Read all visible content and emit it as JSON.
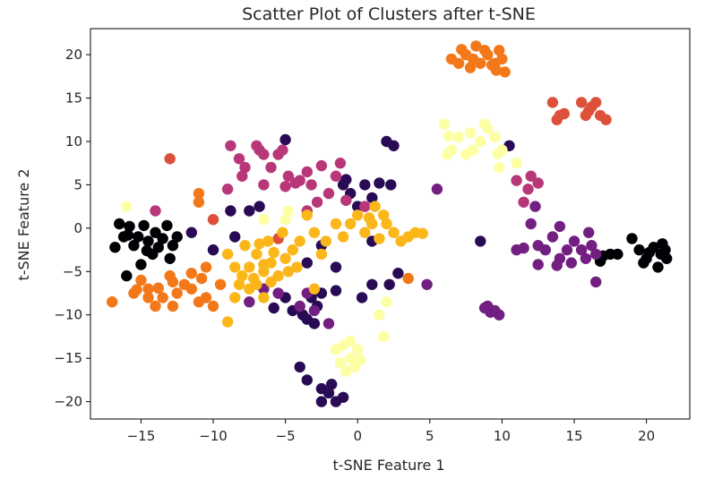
{
  "chart_data": {
    "type": "scatter",
    "title": "Scatter Plot of Clusters after t-SNE",
    "xlabel": "t-SNE Feature 1",
    "ylabel": "t-SNE Feature 2",
    "xlim": [
      -18.5,
      23
    ],
    "ylim": [
      -22,
      23
    ],
    "xticks": [
      -15,
      -10,
      -5,
      0,
      5,
      10,
      15,
      20
    ],
    "yticks": [
      20,
      15,
      10,
      5,
      0,
      -5,
      -10,
      -15,
      -20
    ],
    "xtick_labels": [
      "−15",
      "−10",
      "−5",
      "0",
      "5",
      "10",
      "15",
      "20"
    ],
    "ytick_labels": [
      "20",
      "15",
      "10",
      "5",
      "0",
      "−5",
      "−10",
      "−15",
      "−20"
    ],
    "grid": false,
    "legend": "none",
    "colormap": "inferno",
    "series": [
      {
        "color": "#000004",
        "points": [
          [
            -16.5,
            0.5
          ],
          [
            -16.2,
            -1.0
          ],
          [
            -15.8,
            0.2
          ],
          [
            -15.5,
            -2.0
          ],
          [
            -15.2,
            -1.0
          ],
          [
            -14.8,
            0.3
          ],
          [
            -14.5,
            -1.5
          ],
          [
            -14.2,
            -3.0
          ],
          [
            -14.0,
            -0.5
          ],
          [
            -13.8,
            -2.2
          ],
          [
            -13.5,
            -1.2
          ],
          [
            -13.2,
            0.3
          ],
          [
            -13.0,
            -3.5
          ],
          [
            -12.8,
            -2.0
          ],
          [
            -16.8,
            -2.2
          ],
          [
            -16.0,
            -5.5
          ],
          [
            -15.0,
            -4.2
          ],
          [
            -12.5,
            -1.0
          ],
          [
            -14.6,
            -2.6
          ],
          [
            -15.9,
            -0.8
          ],
          [
            19.0,
            -1.2
          ],
          [
            19.5,
            -2.5
          ],
          [
            20.0,
            -3.5
          ],
          [
            20.5,
            -2.2
          ],
          [
            21.0,
            -3.0
          ],
          [
            20.8,
            -4.5
          ],
          [
            21.3,
            -2.5
          ],
          [
            19.8,
            -4.0
          ],
          [
            20.2,
            -2.8
          ],
          [
            21.1,
            -1.8
          ],
          [
            17.0,
            -3.2
          ],
          [
            17.5,
            -3.0
          ],
          [
            16.8,
            -3.8
          ],
          [
            18.0,
            -3.0
          ],
          [
            21.4,
            -3.5
          ]
        ]
      },
      {
        "color": "#290b55",
        "points": [
          [
            -10.0,
            -2.5
          ],
          [
            -11.5,
            -0.5
          ],
          [
            -8.5,
            -1.0
          ],
          [
            -8.8,
            2.0
          ],
          [
            -7.5,
            2.0
          ],
          [
            -6.8,
            2.5
          ],
          [
            -5.0,
            10.2
          ],
          [
            -3.5,
            -4.0
          ],
          [
            -2.5,
            -2.0
          ],
          [
            -1.0,
            5.0
          ],
          [
            -0.5,
            4.0
          ],
          [
            0.0,
            2.5
          ],
          [
            0.5,
            5.0
          ],
          [
            1.0,
            3.5
          ],
          [
            1.5,
            5.2
          ],
          [
            2.0,
            10.0
          ],
          [
            2.5,
            9.5
          ],
          [
            2.2,
            -6.5
          ],
          [
            2.8,
            -5.2
          ],
          [
            1.0,
            -6.5
          ],
          [
            0.3,
            -8.0
          ],
          [
            -1.5,
            -7.2
          ],
          [
            -2.5,
            -7.5
          ],
          [
            -3.2,
            -8.0
          ],
          [
            -4.5,
            -9.5
          ],
          [
            -3.8,
            -10.0
          ],
          [
            -3.0,
            -11.0
          ],
          [
            -3.5,
            -10.5
          ],
          [
            -2.8,
            -9.0
          ],
          [
            -5.0,
            -8.0
          ],
          [
            -4.0,
            -16.0
          ],
          [
            -3.5,
            -17.5
          ],
          [
            -2.5,
            -18.5
          ],
          [
            -2.0,
            -19.0
          ],
          [
            -1.5,
            -20.0
          ],
          [
            -1.0,
            -19.5
          ],
          [
            -2.5,
            -20.0
          ],
          [
            -1.8,
            -18.0
          ],
          [
            10.5,
            9.5
          ],
          [
            8.5,
            -1.5
          ],
          [
            1.0,
            -1.5
          ],
          [
            2.3,
            5.0
          ],
          [
            -1.5,
            -4.5
          ],
          [
            -0.8,
            5.6
          ],
          [
            -5.8,
            -9.2
          ]
        ]
      },
      {
        "color": "#721f81",
        "points": [
          [
            -7.5,
            -8.5
          ],
          [
            -6.5,
            -7.0
          ],
          [
            -5.5,
            -7.5
          ],
          [
            -3.5,
            -7.5
          ],
          [
            -4.0,
            -9.0
          ],
          [
            -3.0,
            -9.5
          ],
          [
            -2.0,
            -11.0
          ],
          [
            9.0,
            -9.0
          ],
          [
            9.5,
            -9.5
          ],
          [
            9.8,
            -10.0
          ],
          [
            9.2,
            -9.7
          ],
          [
            12.0,
            0.5
          ],
          [
            12.5,
            -2.0
          ],
          [
            13.0,
            -2.5
          ],
          [
            13.5,
            -1.0
          ],
          [
            14.0,
            -3.5
          ],
          [
            14.5,
            -2.5
          ],
          [
            14.8,
            -4.0
          ],
          [
            15.0,
            -1.5
          ],
          [
            15.5,
            -2.5
          ],
          [
            16.0,
            -0.5
          ],
          [
            16.5,
            -3.0
          ],
          [
            16.2,
            -2.0
          ],
          [
            15.8,
            -3.5
          ],
          [
            16.5,
            -6.2
          ],
          [
            11.0,
            -2.5
          ],
          [
            11.5,
            -2.3
          ],
          [
            12.5,
            -4.2
          ],
          [
            14.0,
            0.2
          ],
          [
            12.3,
            2.5
          ],
          [
            5.5,
            4.5
          ],
          [
            4.8,
            -6.5
          ],
          [
            8.8,
            -9.2
          ],
          [
            13.8,
            -4.3
          ]
        ]
      },
      {
        "color": "#b73779",
        "points": [
          [
            -14.0,
            2.0
          ],
          [
            -8.8,
            9.5
          ],
          [
            -8.2,
            8.0
          ],
          [
            -7.8,
            7.0
          ],
          [
            -7.0,
            9.5
          ],
          [
            -6.5,
            8.5
          ],
          [
            -6.0,
            7.0
          ],
          [
            -5.5,
            8.5
          ],
          [
            -5.2,
            9.0
          ],
          [
            -4.8,
            6.0
          ],
          [
            -4.0,
            5.5
          ],
          [
            -3.5,
            6.5
          ],
          [
            -3.2,
            5.0
          ],
          [
            -2.8,
            3.0
          ],
          [
            -2.0,
            4.0
          ],
          [
            -1.5,
            6.0
          ],
          [
            -1.2,
            7.5
          ],
          [
            -0.8,
            3.2
          ],
          [
            0.5,
            2.5
          ],
          [
            -5.0,
            4.8
          ],
          [
            -6.5,
            5.0
          ],
          [
            -8.0,
            6.0
          ],
          [
            -9.0,
            4.5
          ],
          [
            -2.5,
            7.2
          ],
          [
            -3.5,
            2.0
          ],
          [
            11.0,
            5.5
          ],
          [
            11.5,
            3.0
          ],
          [
            12.0,
            6.0
          ],
          [
            12.5,
            5.2
          ],
          [
            11.8,
            4.5
          ],
          [
            -6.8,
            9.0
          ],
          [
            -4.3,
            5.2
          ]
        ]
      },
      {
        "color": "#dd513a",
        "points": [
          [
            13.5,
            14.5
          ],
          [
            14.0,
            13.0
          ],
          [
            13.8,
            12.5
          ],
          [
            15.5,
            14.5
          ],
          [
            16.0,
            13.5
          ],
          [
            16.5,
            14.5
          ],
          [
            15.8,
            13.0
          ],
          [
            16.8,
            13.0
          ],
          [
            17.2,
            12.5
          ],
          [
            16.2,
            14.0
          ],
          [
            -10.0,
            1.0
          ],
          [
            -13.0,
            8.0
          ],
          [
            14.3,
            13.2
          ],
          [
            -5.5,
            -1.2
          ]
        ]
      },
      {
        "color": "#f37819",
        "points": [
          [
            -17.0,
            -8.5
          ],
          [
            -15.5,
            -7.5
          ],
          [
            -15.0,
            -6.0
          ],
          [
            -14.5,
            -7.0
          ],
          [
            -14.0,
            -9.0
          ],
          [
            -13.5,
            -8.0
          ],
          [
            -13.0,
            -5.5
          ],
          [
            -12.5,
            -7.5
          ],
          [
            -12.0,
            -6.5
          ],
          [
            -11.5,
            -7.0
          ],
          [
            -11.5,
            -5.2
          ],
          [
            -11.0,
            -8.5
          ],
          [
            -10.5,
            -8.0
          ],
          [
            -10.0,
            -9.0
          ],
          [
            -10.5,
            -4.5
          ],
          [
            -9.5,
            -6.5
          ],
          [
            -14.5,
            -8.0
          ],
          [
            -12.8,
            -9.0
          ],
          [
            -11.0,
            3.0
          ],
          [
            -11.0,
            4.0
          ],
          [
            -12.8,
            -6.2
          ],
          [
            3.5,
            -5.8
          ],
          [
            -10.8,
            -5.8
          ],
          [
            7.0,
            19.0
          ],
          [
            7.5,
            20.0
          ],
          [
            8.0,
            19.5
          ],
          [
            8.5,
            19.0
          ],
          [
            9.0,
            20.0
          ],
          [
            9.5,
            19.0
          ],
          [
            9.8,
            20.5
          ],
          [
            8.2,
            21.0
          ],
          [
            7.8,
            18.5
          ],
          [
            10.0,
            19.5
          ],
          [
            10.2,
            18.0
          ],
          [
            9.3,
            18.8
          ],
          [
            6.5,
            19.5
          ],
          [
            8.8,
            20.5
          ],
          [
            9.6,
            18.2
          ],
          [
            7.2,
            20.6
          ],
          [
            -15.3,
            -7.1
          ],
          [
            -13.8,
            -6.9
          ]
        ]
      },
      {
        "color": "#fbb61a",
        "points": [
          [
            -9.0,
            -3.0
          ],
          [
            -8.5,
            -4.5
          ],
          [
            -8.0,
            -5.5
          ],
          [
            -7.5,
            -4.5
          ],
          [
            -7.0,
            -3.0
          ],
          [
            -6.5,
            -5.0
          ],
          [
            -6.0,
            -4.0
          ],
          [
            -5.5,
            -5.5
          ],
          [
            -5.0,
            -3.5
          ],
          [
            -4.8,
            -5.0
          ],
          [
            -6.0,
            -6.2
          ],
          [
            -7.2,
            -5.8
          ],
          [
            -8.2,
            -6.5
          ],
          [
            -7.5,
            -7.0
          ],
          [
            -6.5,
            -8.0
          ],
          [
            -4.5,
            -2.5
          ],
          [
            -4.0,
            -1.5
          ],
          [
            -3.5,
            1.5
          ],
          [
            -3.0,
            -0.5
          ],
          [
            -2.5,
            -3.0
          ],
          [
            -1.5,
            0.5
          ],
          [
            -2.2,
            -1.5
          ],
          [
            -1.0,
            -1.0
          ],
          [
            -0.5,
            0.5
          ],
          [
            0.0,
            1.5
          ],
          [
            0.5,
            -0.5
          ],
          [
            1.0,
            0.5
          ],
          [
            1.5,
            -1.2
          ],
          [
            2.0,
            0.5
          ],
          [
            2.5,
            -0.5
          ],
          [
            3.0,
            -1.5
          ],
          [
            3.5,
            -1.0
          ],
          [
            4.0,
            -0.5
          ],
          [
            4.5,
            -0.6
          ],
          [
            1.2,
            2.5
          ],
          [
            1.8,
            1.5
          ],
          [
            -6.8,
            -1.8
          ],
          [
            -5.8,
            -2.8
          ],
          [
            -4.2,
            -4.5
          ],
          [
            -5.2,
            -0.5
          ],
          [
            -3.0,
            -7.0
          ],
          [
            -8.5,
            -8.0
          ],
          [
            -9.0,
            -10.8
          ],
          [
            -7.8,
            -2.0
          ],
          [
            -6.2,
            -1.5
          ],
          [
            0.8,
            1.2
          ],
          [
            -7.0,
            -6.5
          ],
          [
            -6.5,
            -4.2
          ]
        ]
      },
      {
        "color": "#fcffa4",
        "points": [
          [
            6.0,
            12.0
          ],
          [
            6.5,
            9.0
          ],
          [
            7.0,
            10.5
          ],
          [
            7.5,
            8.5
          ],
          [
            8.0,
            9.0
          ],
          [
            8.5,
            10.0
          ],
          [
            9.0,
            11.5
          ],
          [
            9.5,
            10.5
          ],
          [
            10.0,
            9.0
          ],
          [
            8.8,
            12.0
          ],
          [
            7.8,
            11.0
          ],
          [
            9.8,
            7.0
          ],
          [
            6.2,
            8.5
          ],
          [
            -1.5,
            -14.0
          ],
          [
            -1.0,
            -13.5
          ],
          [
            -0.5,
            -15.0
          ],
          [
            0.0,
            -14.0
          ],
          [
            -1.2,
            -15.5
          ],
          [
            -0.8,
            -16.5
          ],
          [
            -0.2,
            -16.0
          ],
          [
            0.2,
            -15.2
          ],
          [
            -0.5,
            -13.0
          ],
          [
            1.5,
            -10.0
          ],
          [
            1.8,
            -12.5
          ],
          [
            -6.5,
            1.0
          ],
          [
            -5.0,
            1.0
          ],
          [
            -4.8,
            2.0
          ],
          [
            2.0,
            -8.5
          ],
          [
            11.0,
            7.5
          ],
          [
            -16.0,
            2.5
          ],
          [
            6.3,
            10.6
          ],
          [
            9.7,
            8.6
          ]
        ]
      }
    ]
  }
}
